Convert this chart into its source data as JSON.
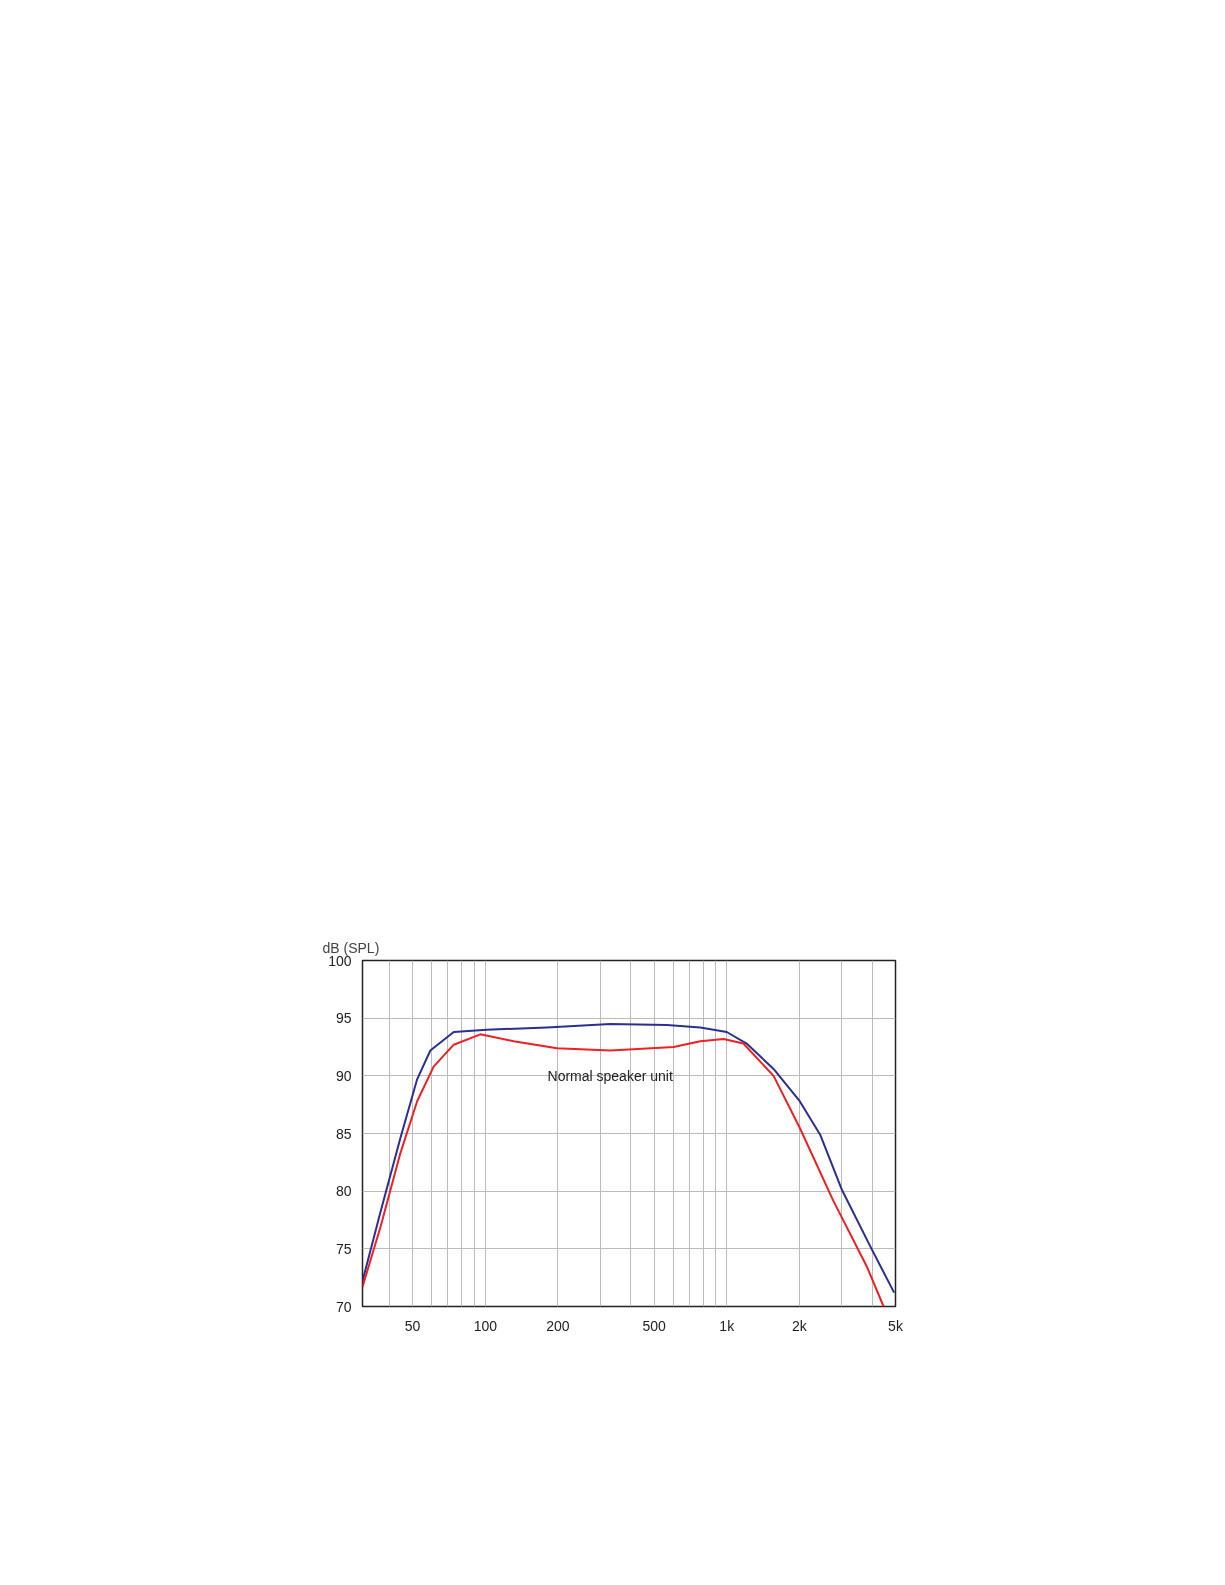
{
  "chart_data": {
    "type": "line",
    "ylabel": "dB (SPL)",
    "log": "x",
    "grid": true,
    "xlim": [
      31,
      5000
    ],
    "ylim": [
      70,
      100
    ],
    "xticks": [
      {
        "value": 40,
        "label": null
      },
      50,
      {
        "value": 60,
        "label": null
      },
      {
        "value": 70,
        "label": null
      },
      {
        "value": 80,
        "label": null
      },
      {
        "value": 90,
        "label": null
      },
      100,
      200,
      {
        "value": 300,
        "label": null
      },
      {
        "value": 400,
        "label": null
      },
      500,
      {
        "value": 600,
        "label": null
      },
      {
        "value": 700,
        "label": null
      },
      {
        "value": 800,
        "label": null
      },
      {
        "value": 900,
        "label": null
      },
      {
        "value": 1000,
        "label": "1k"
      },
      {
        "value": 2000,
        "label": "2k"
      },
      {
        "value": 3000,
        "label": null
      },
      {
        "value": 4000,
        "label": null
      },
      {
        "value": 5000,
        "label": "5k"
      }
    ],
    "yticks": [
      70,
      75,
      80,
      85,
      90,
      95,
      100
    ],
    "series": [
      {
        "color": "#2b2f8f",
        "x": [
          31,
          36.8,
          44.5,
          52.2,
          59.2,
          74,
          101.6,
          180,
          329,
          565,
          777,
          1000,
          1209,
          1563,
          2006,
          2438,
          3002,
          3979,
          4935
        ],
        "values": [
          72.2,
          78.2,
          84.6,
          89.7,
          92.2,
          93.8,
          94.0,
          94.2,
          94.5,
          94.4,
          94.2,
          93.8,
          92.8,
          90.6,
          87.8,
          84.9,
          80.1,
          75.0,
          71.2
        ]
      },
      {
        "name": "Normal speaker unit",
        "color": "#ee2024",
        "x": [
          31,
          36.8,
          44.5,
          52.2,
          61.1,
          74,
          95.4,
          131,
          198,
          329,
          410,
          603,
          777,
          970,
          1172,
          1563,
          2006,
          2758,
          3816,
          4463
        ],
        "values": [
          71.7,
          76.9,
          83.3,
          87.8,
          90.8,
          92.7,
          93.6,
          93.0,
          92.4,
          92.2,
          92.3,
          92.5,
          93.0,
          93.2,
          92.8,
          90.0,
          85.5,
          79.2,
          73.4,
          70.0
        ]
      }
    ]
  }
}
